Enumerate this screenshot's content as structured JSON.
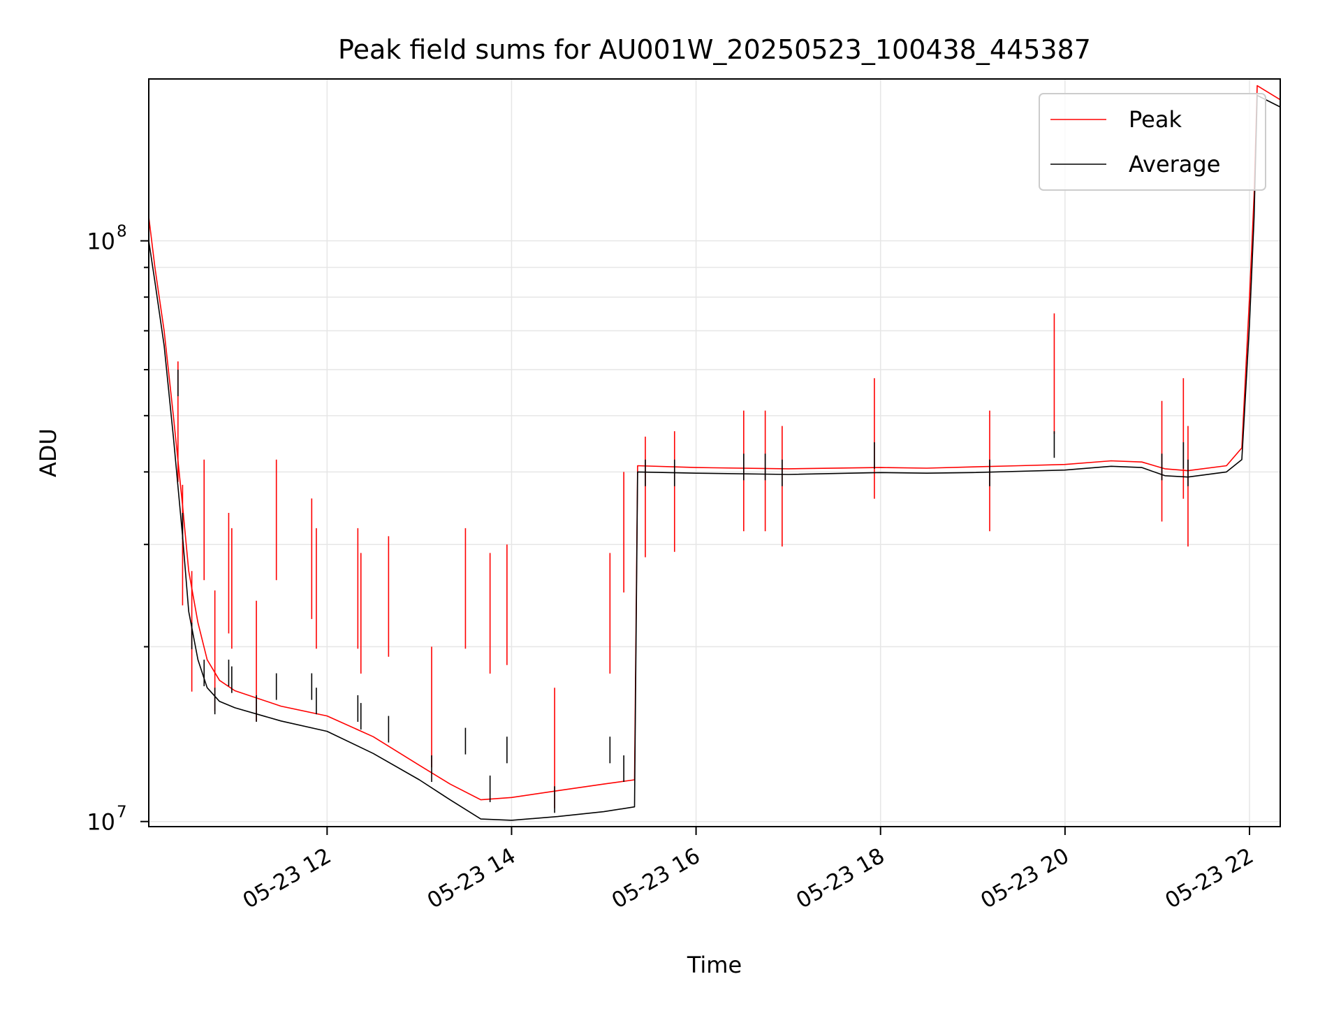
{
  "chart_data": {
    "type": "line",
    "title": "Peak field sums for AU001W_20250523_100438_445387",
    "xlabel": "Time",
    "ylabel": "ADU",
    "yscale": "log",
    "xlim": [
      "2025-05-23 10:04",
      "2025-05-23 22:20"
    ],
    "ylim": [
      9800000,
      190000000
    ],
    "grid": true,
    "legend_position": "upper right",
    "x_ticks": [
      "2025-05-23 12:00",
      "2025-05-23 14:00",
      "2025-05-23 16:00",
      "2025-05-23 18:00",
      "2025-05-23 20:00",
      "2025-05-23 22:00"
    ],
    "x_tick_labels": [
      "05-23 12",
      "05-23 14",
      "05-23 16",
      "05-23 18",
      "05-23 20",
      "05-23 22"
    ],
    "y_tick_labels": [
      {
        "value": 10000000,
        "base": "10",
        "exp": "7"
      },
      {
        "value": 100000000,
        "base": "10",
        "exp": "8"
      }
    ],
    "series": [
      {
        "name": "Peak",
        "color": "#ff0000",
        "x": [
          "2025-05-23 10:04",
          "2025-05-23 10:08",
          "2025-05-23 10:14",
          "2025-05-23 10:20",
          "2025-05-23 10:26",
          "2025-05-23 10:30",
          "2025-05-23 10:36",
          "2025-05-23 10:42",
          "2025-05-23 10:50",
          "2025-05-23 11:00",
          "2025-05-23 11:30",
          "2025-05-23 12:00",
          "2025-05-23 12:30",
          "2025-05-23 13:00",
          "2025-05-23 13:20",
          "2025-05-23 13:40",
          "2025-05-23 14:00",
          "2025-05-23 14:30",
          "2025-05-23 15:00",
          "2025-05-23 15:20",
          "2025-05-23 15:22",
          "2025-05-23 16:00",
          "2025-05-23 17:00",
          "2025-05-23 18:00",
          "2025-05-23 18:30",
          "2025-05-23 19:00",
          "2025-05-23 19:30",
          "2025-05-23 20:00",
          "2025-05-23 20:30",
          "2025-05-23 20:50",
          "2025-05-23 21:05",
          "2025-05-23 21:20",
          "2025-05-23 21:45",
          "2025-05-23 21:55",
          "2025-05-23 22:00",
          "2025-05-23 22:03",
          "2025-05-23 22:05",
          "2025-05-23 22:20"
        ],
        "values": [
          110000000,
          90000000,
          70000000,
          50000000,
          35000000,
          27000000,
          22000000,
          19000000,
          17500000,
          16800000,
          15800000,
          15200000,
          14000000,
          12500000,
          11600000,
          10900000,
          11000000,
          11300000,
          11600000,
          11800000,
          41000000,
          40700000,
          40500000,
          40700000,
          40600000,
          40800000,
          41000000,
          41200000,
          41800000,
          41600000,
          40500000,
          40200000,
          41000000,
          44000000,
          80000000,
          120000000,
          185000000,
          175000000
        ]
      },
      {
        "name": "Average",
        "color": "#000000",
        "x": [
          "2025-05-23 10:04",
          "2025-05-23 10:08",
          "2025-05-23 10:14",
          "2025-05-23 10:20",
          "2025-05-23 10:26",
          "2025-05-23 10:30",
          "2025-05-23 10:36",
          "2025-05-23 10:42",
          "2025-05-23 10:50",
          "2025-05-23 11:00",
          "2025-05-23 11:30",
          "2025-05-23 12:00",
          "2025-05-23 12:30",
          "2025-05-23 13:00",
          "2025-05-23 13:20",
          "2025-05-23 13:40",
          "2025-05-23 14:00",
          "2025-05-23 14:30",
          "2025-05-23 15:00",
          "2025-05-23 15:20",
          "2025-05-23 15:22",
          "2025-05-23 16:00",
          "2025-05-23 17:00",
          "2025-05-23 18:00",
          "2025-05-23 18:30",
          "2025-05-23 19:00",
          "2025-05-23 19:30",
          "2025-05-23 20:00",
          "2025-05-23 20:30",
          "2025-05-23 20:50",
          "2025-05-23 21:05",
          "2025-05-23 21:20",
          "2025-05-23 21:45",
          "2025-05-23 21:55",
          "2025-05-23 22:00",
          "2025-05-23 22:03",
          "2025-05-23 22:05",
          "2025-05-23 22:20"
        ],
        "values": [
          100000000,
          85000000,
          66000000,
          46000000,
          31000000,
          23000000,
          19000000,
          17000000,
          16100000,
          15700000,
          14900000,
          14300000,
          13100000,
          11800000,
          10900000,
          10100000,
          10050000,
          10200000,
          10400000,
          10600000,
          40000000,
          39800000,
          39600000,
          39900000,
          39800000,
          39900000,
          40100000,
          40300000,
          40900000,
          40700000,
          39400000,
          39200000,
          40000000,
          42000000,
          72000000,
          110000000,
          178000000,
          170000000
        ]
      }
    ],
    "spikes": [
      {
        "time": "2025-05-23 10:23",
        "peak": 62000000,
        "average": 60000000
      },
      {
        "time": "2025-05-23 10:26",
        "peak": 38000000,
        "average": 34000000
      },
      {
        "time": "2025-05-23 10:32",
        "peak": 27000000,
        "average": 22000000
      },
      {
        "time": "2025-05-23 10:40",
        "peak": 42000000,
        "average": 19000000
      },
      {
        "time": "2025-05-23 10:47",
        "peak": 25000000,
        "average": 17000000
      },
      {
        "time": "2025-05-23 10:56",
        "peak": 34000000,
        "average": 19000000
      },
      {
        "time": "2025-05-23 10:58",
        "peak": 32000000,
        "average": 18500000
      },
      {
        "time": "2025-05-23 11:14",
        "peak": 24000000,
        "average": 16500000
      },
      {
        "time": "2025-05-23 11:27",
        "peak": 42000000,
        "average": 18000000
      },
      {
        "time": "2025-05-23 11:50",
        "peak": 36000000,
        "average": 18000000
      },
      {
        "time": "2025-05-23 11:53",
        "peak": 32000000,
        "average": 17000000
      },
      {
        "time": "2025-05-23 12:20",
        "peak": 32000000,
        "average": 16500000
      },
      {
        "time": "2025-05-23 12:22",
        "peak": 29000000,
        "average": 16000000
      },
      {
        "time": "2025-05-23 12:40",
        "peak": 31000000,
        "average": 15200000
      },
      {
        "time": "2025-05-23 13:08",
        "peak": 20000000,
        "average": 13000000
      },
      {
        "time": "2025-05-23 13:30",
        "peak": 32000000,
        "average": 14500000
      },
      {
        "time": "2025-05-23 13:46",
        "peak": 29000000,
        "average": 12000000
      },
      {
        "time": "2025-05-23 13:57",
        "peak": 30000000,
        "average": 14000000
      },
      {
        "time": "2025-05-23 14:28",
        "peak": 17000000,
        "average": 11500000
      },
      {
        "time": "2025-05-23 15:04",
        "peak": 29000000,
        "average": 14000000
      },
      {
        "time": "2025-05-23 15:13",
        "peak": 40000000,
        "average": 13000000
      },
      {
        "time": "2025-05-23 15:27",
        "peak": 46000000,
        "average": 42000000
      },
      {
        "time": "2025-05-23 15:46",
        "peak": 47000000,
        "average": 42000000
      },
      {
        "time": "2025-05-23 16:31",
        "peak": 51000000,
        "average": 43000000
      },
      {
        "time": "2025-05-23 16:45",
        "peak": 51000000,
        "average": 43000000
      },
      {
        "time": "2025-05-23 16:56",
        "peak": 48000000,
        "average": 42000000
      },
      {
        "time": "2025-05-23 17:56",
        "peak": 58000000,
        "average": 45000000
      },
      {
        "time": "2025-05-23 19:11",
        "peak": 51000000,
        "average": 42000000
      },
      {
        "time": "2025-05-23 19:53",
        "peak": 75000000,
        "average": 47000000
      },
      {
        "time": "2025-05-23 21:03",
        "peak": 53000000,
        "average": 43000000
      },
      {
        "time": "2025-05-23 21:17",
        "peak": 58000000,
        "average": 45000000
      },
      {
        "time": "2025-05-23 21:20",
        "peak": 48000000,
        "average": 42000000
      }
    ]
  }
}
